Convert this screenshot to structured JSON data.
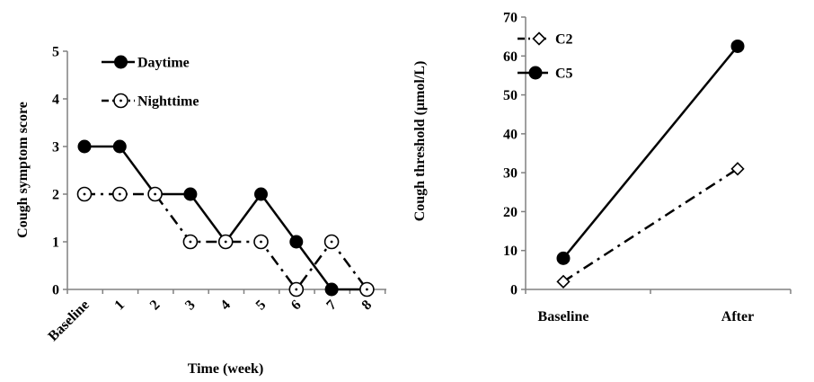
{
  "chart_data": [
    {
      "type": "line",
      "xlabel": "Time (week)",
      "ylabel": "Cough symptom score",
      "categories": [
        "Baseline",
        "1",
        "2",
        "3",
        "4",
        "5",
        "6",
        "7",
        "8"
      ],
      "ylim": [
        0,
        5
      ],
      "yticks": [
        0,
        1,
        2,
        3,
        4,
        5
      ],
      "grid": false,
      "legend_position": "top-left",
      "series": [
        {
          "name": "Daytime",
          "values": [
            3,
            3,
            2,
            2,
            1,
            2,
            1,
            0,
            0
          ],
          "marker": "filled-circle",
          "line": "solid",
          "color": "#000000"
        },
        {
          "name": "Nighttime",
          "values": [
            2,
            2,
            2,
            1,
            1,
            1,
            0,
            1,
            0
          ],
          "marker": "open-circle",
          "line": "dash-dot",
          "color": "#000000"
        }
      ]
    },
    {
      "type": "line",
      "xlabel": "",
      "ylabel": "Cough threshold (μmol/L)",
      "categories": [
        "Baseline",
        "After"
      ],
      "ylim": [
        0,
        70
      ],
      "yticks": [
        0,
        10,
        20,
        30,
        40,
        50,
        60,
        70
      ],
      "grid": false,
      "legend_position": "top-left",
      "series": [
        {
          "name": "C2",
          "values": [
            2,
            31
          ],
          "marker": "open-diamond",
          "line": "dash-dot",
          "color": "#000000"
        },
        {
          "name": "C5",
          "values": [
            8,
            62.5
          ],
          "marker": "filled-circle",
          "line": "solid",
          "color": "#000000"
        }
      ]
    }
  ]
}
